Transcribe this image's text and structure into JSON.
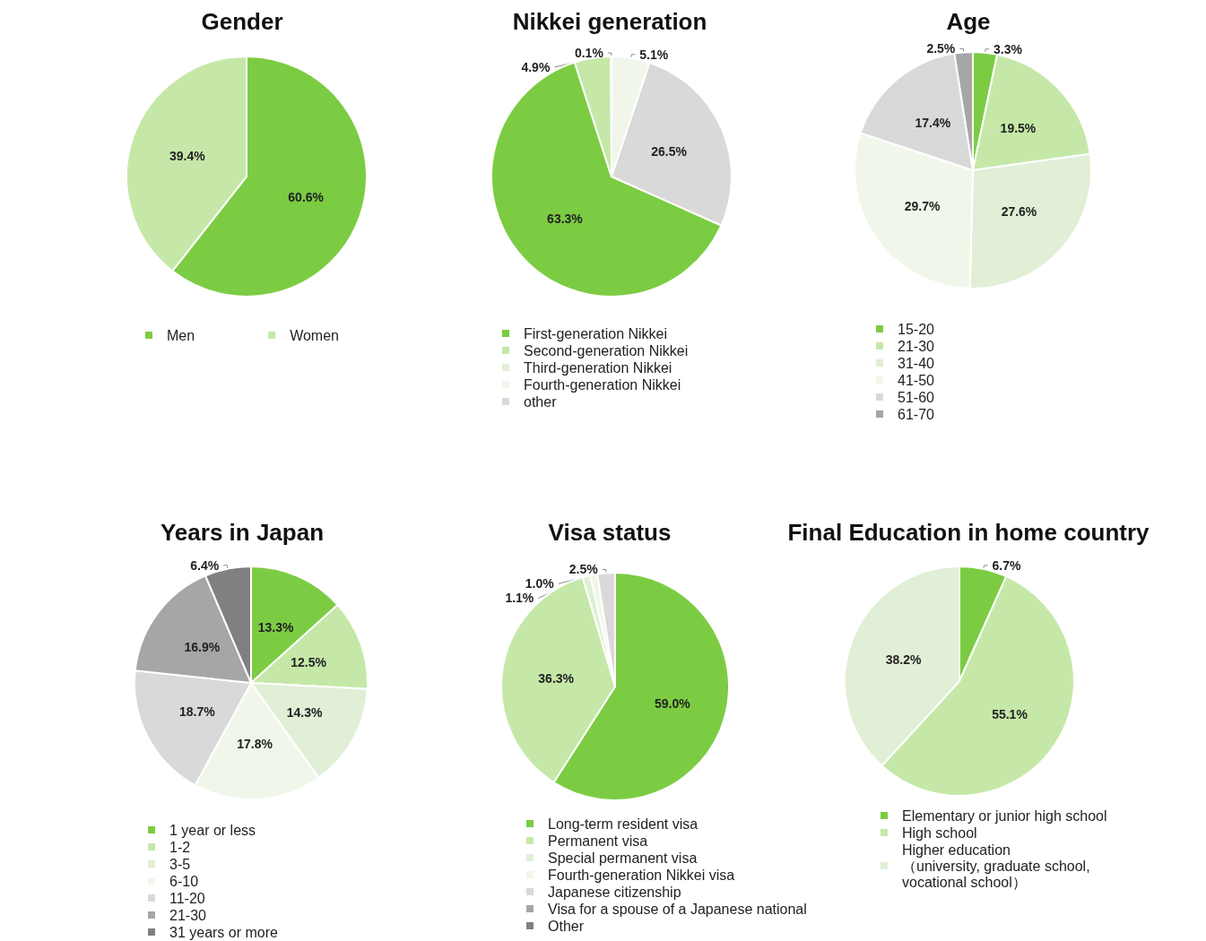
{
  "chart_data": [
    {
      "type": "pie",
      "title": "Gender",
      "categories": [
        "Men",
        "Women"
      ],
      "values": [
        60.6,
        39.4
      ],
      "colors": [
        "#7ccc43",
        "#c5e8a8"
      ],
      "value_labels": [
        "60.6%",
        "39.4%"
      ],
      "legend": "bottom"
    },
    {
      "type": "pie",
      "title": "Nikkei generation",
      "categories": [
        "First-generation Nikkei",
        "Second-generation Nikkei",
        "Third-generation Nikkei",
        "Fourth-generation Nikkei",
        "other"
      ],
      "values": [
        63.3,
        4.9,
        0.1,
        5.1,
        26.5
      ],
      "colors": [
        "#7ccc43",
        "#c5e8a8",
        "#e0efd6",
        "#f0f7ea",
        "#d9d9d9"
      ],
      "value_labels": [
        "63.3%",
        "4.9%",
        "0.1%",
        "5.1%",
        "26.5%"
      ],
      "legend": "bottom"
    },
    {
      "type": "pie",
      "title": "Age",
      "categories": [
        "15-20",
        "21-30",
        "31-40",
        "41-50",
        "51-60",
        "61-70"
      ],
      "values": [
        3.3,
        19.5,
        27.6,
        29.7,
        17.4,
        2.5
      ],
      "colors": [
        "#7ccc43",
        "#c5e8a8",
        "#e0efd6",
        "#f0f7ea",
        "#d9d9d9",
        "#a6a6a6"
      ],
      "value_labels": [
        "3.3%",
        "19.5%",
        "27.6%",
        "29.7%",
        "17.4%",
        "2.5%"
      ],
      "legend": "bottom"
    },
    {
      "type": "pie",
      "title": "Years in Japan",
      "categories": [
        "1 year or less",
        "1-2",
        "3-5",
        "6-10",
        "11-20",
        "21-30",
        "31 years or more"
      ],
      "values": [
        13.3,
        12.5,
        14.3,
        17.8,
        18.7,
        16.9,
        6.4
      ],
      "colors": [
        "#7ccc43",
        "#c5e8a8",
        "#e0efd6",
        "#f0f7ea",
        "#d9d9d9",
        "#a6a6a6",
        "#808080"
      ],
      "value_labels": [
        "13.3%",
        "12.5%",
        "14.3%",
        "17.8%",
        "18.7%",
        "16.9%",
        "6.4%"
      ],
      "legend": "bottom"
    },
    {
      "type": "pie",
      "title": "Visa status",
      "categories": [
        "Long-term resident visa",
        "Permanent visa",
        "Special permanent visa",
        "Fourth-generation Nikkei visa",
        "Japanese citizenship",
        "Visa for a spouse of a Japanese national",
        "Other"
      ],
      "values": [
        59.0,
        36.3,
        1.1,
        1.0,
        2.5,
        0,
        0
      ],
      "colors": [
        "#7ccc43",
        "#c5e8a8",
        "#e0efd6",
        "#f0f7ea",
        "#d9d9d9",
        "#a6a6a6",
        "#808080"
      ],
      "value_labels": [
        "59.0%",
        "36.3%",
        "1.1%",
        "1.0%",
        "2.5%",
        null,
        null
      ],
      "legend": "bottom"
    },
    {
      "type": "pie",
      "title": "Final Education in home country",
      "categories": [
        "Elementary or junior high school",
        "High school",
        "Higher education\n（university, graduate school,\nvocational school）"
      ],
      "values": [
        6.7,
        55.1,
        38.2
      ],
      "colors": [
        "#7ccc43",
        "#c5e8a8",
        "#e0efd6"
      ],
      "value_labels": [
        "6.7%",
        "55.1%",
        "38.2%"
      ],
      "legend": "bottom"
    }
  ]
}
